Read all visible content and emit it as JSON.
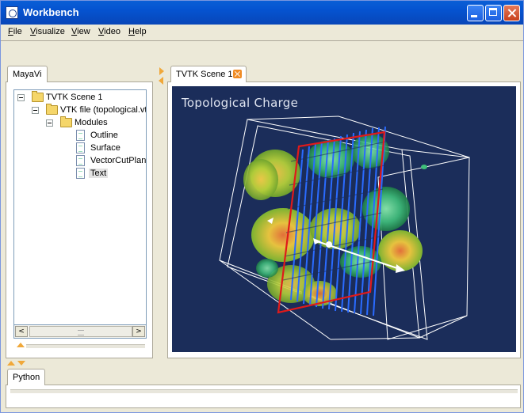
{
  "window": {
    "title": "Workbench"
  },
  "menu": [
    "File",
    "Visualize",
    "View",
    "Video",
    "Help"
  ],
  "left_panel": {
    "tab": "MayaVi",
    "tree": [
      {
        "label": "TVTK Scene 1",
        "kind": "folder",
        "level": 0,
        "expanded": true
      },
      {
        "label": "VTK file (topological.vt",
        "kind": "folder",
        "level": 1,
        "expanded": true
      },
      {
        "label": "Modules",
        "kind": "folder",
        "level": 2,
        "expanded": true
      },
      {
        "label": "Outline",
        "kind": "doc",
        "level": 3
      },
      {
        "label": "Surface",
        "kind": "doc",
        "level": 3
      },
      {
        "label": "VectorCutPlan",
        "kind": "doc",
        "level": 3
      },
      {
        "label": "Text",
        "kind": "doc",
        "level": 3,
        "selected": true
      }
    ],
    "scroll_left": "<",
    "scroll_right": ">"
  },
  "editor": {
    "tab": "TVTK Scene 1",
    "scene_text": "Topological Charge",
    "background_color": "#1b2d5a"
  },
  "bottom_panel": {
    "tab": "Python"
  },
  "colors": {
    "title_bar": "#0553d0",
    "accent": "#f0a83a",
    "scene_bg": "#1b2d5a"
  }
}
